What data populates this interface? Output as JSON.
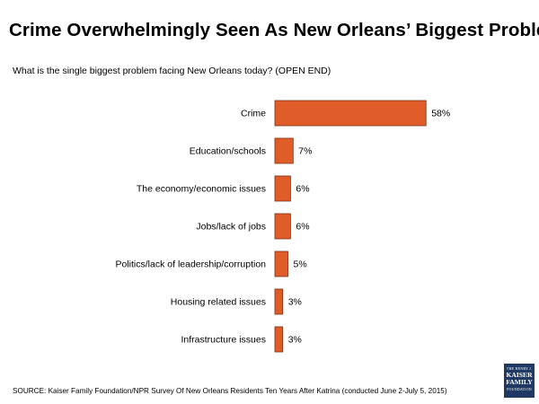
{
  "header": {
    "title": "Crime Overwhelmingly Seen As New Orleans’ Biggest Problem",
    "subtitle": "What is the single biggest problem facing New Orleans today? (OPEN END)"
  },
  "chart_data": {
    "type": "bar",
    "orientation": "horizontal",
    "categories": [
      "Crime",
      "Education/schools",
      "The economy/economic issues",
      "Jobs/lack of jobs",
      "Politics/lack of leadership/corruption",
      "Housing related issues",
      "Infrastructure issues"
    ],
    "values": [
      58,
      7,
      6,
      6,
      5,
      3,
      3
    ],
    "value_labels": [
      "58%",
      "7%",
      "6%",
      "6%",
      "5%",
      "3%",
      "3%"
    ],
    "value_unit": "%",
    "bar_color": "#e05d2a",
    "bar_outline_color": "#7a2e10",
    "title": "",
    "xlabel": "",
    "ylabel": "",
    "grid": false,
    "legend": "none"
  },
  "footer": {
    "source": "SOURCE: Kaiser Family Foundation/NPR Survey Of New Orleans Residents Ten Years After Katrina (conducted June 2-July 5, 2015)"
  },
  "logo": {
    "line1": "THE HENRY J.",
    "line2": "KAISER",
    "line3": "FAMILY",
    "line4": "FOUNDATION",
    "color": "#1f3864"
  }
}
